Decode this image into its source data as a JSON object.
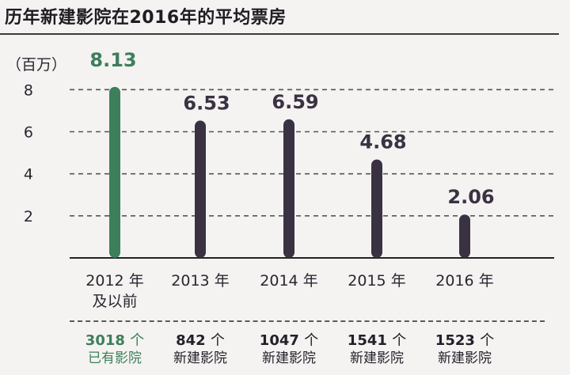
{
  "title": "历年新建影院在2016年的平均票房",
  "colors": {
    "highlight": "#3d7f5a",
    "bar": "#3a3242",
    "grid": "#555555",
    "axis": "#222222",
    "text": "#2a2630"
  },
  "chart_data": {
    "type": "bar",
    "y_unit_label": "（百万）",
    "ylim": [
      0,
      8.2
    ],
    "yticks": [
      2,
      4,
      6,
      8
    ],
    "grid": true,
    "categories": [
      {
        "line1": "2012 年",
        "line2": "及以前"
      },
      {
        "line1": "2013 年",
        "line2": ""
      },
      {
        "line1": "2014 年",
        "line2": ""
      },
      {
        "line1": "2015 年",
        "line2": ""
      },
      {
        "line1": "2016 年",
        "line2": ""
      }
    ],
    "values": [
      8.13,
      6.53,
      6.59,
      4.68,
      2.06
    ],
    "value_labels": [
      "8.13",
      "6.53",
      "6.59",
      "4.68",
      "2.06"
    ],
    "highlight_index": 0
  },
  "cinema_counts": [
    {
      "number": "3018",
      "unit": "个",
      "desc": "已有影院"
    },
    {
      "number": "842",
      "unit": "个",
      "desc": "新建影院"
    },
    {
      "number": "1047",
      "unit": "个",
      "desc": "新建影院"
    },
    {
      "number": "1541",
      "unit": "个",
      "desc": "新建影院"
    },
    {
      "number": "1523",
      "unit": "个",
      "desc": "新建影院"
    }
  ]
}
